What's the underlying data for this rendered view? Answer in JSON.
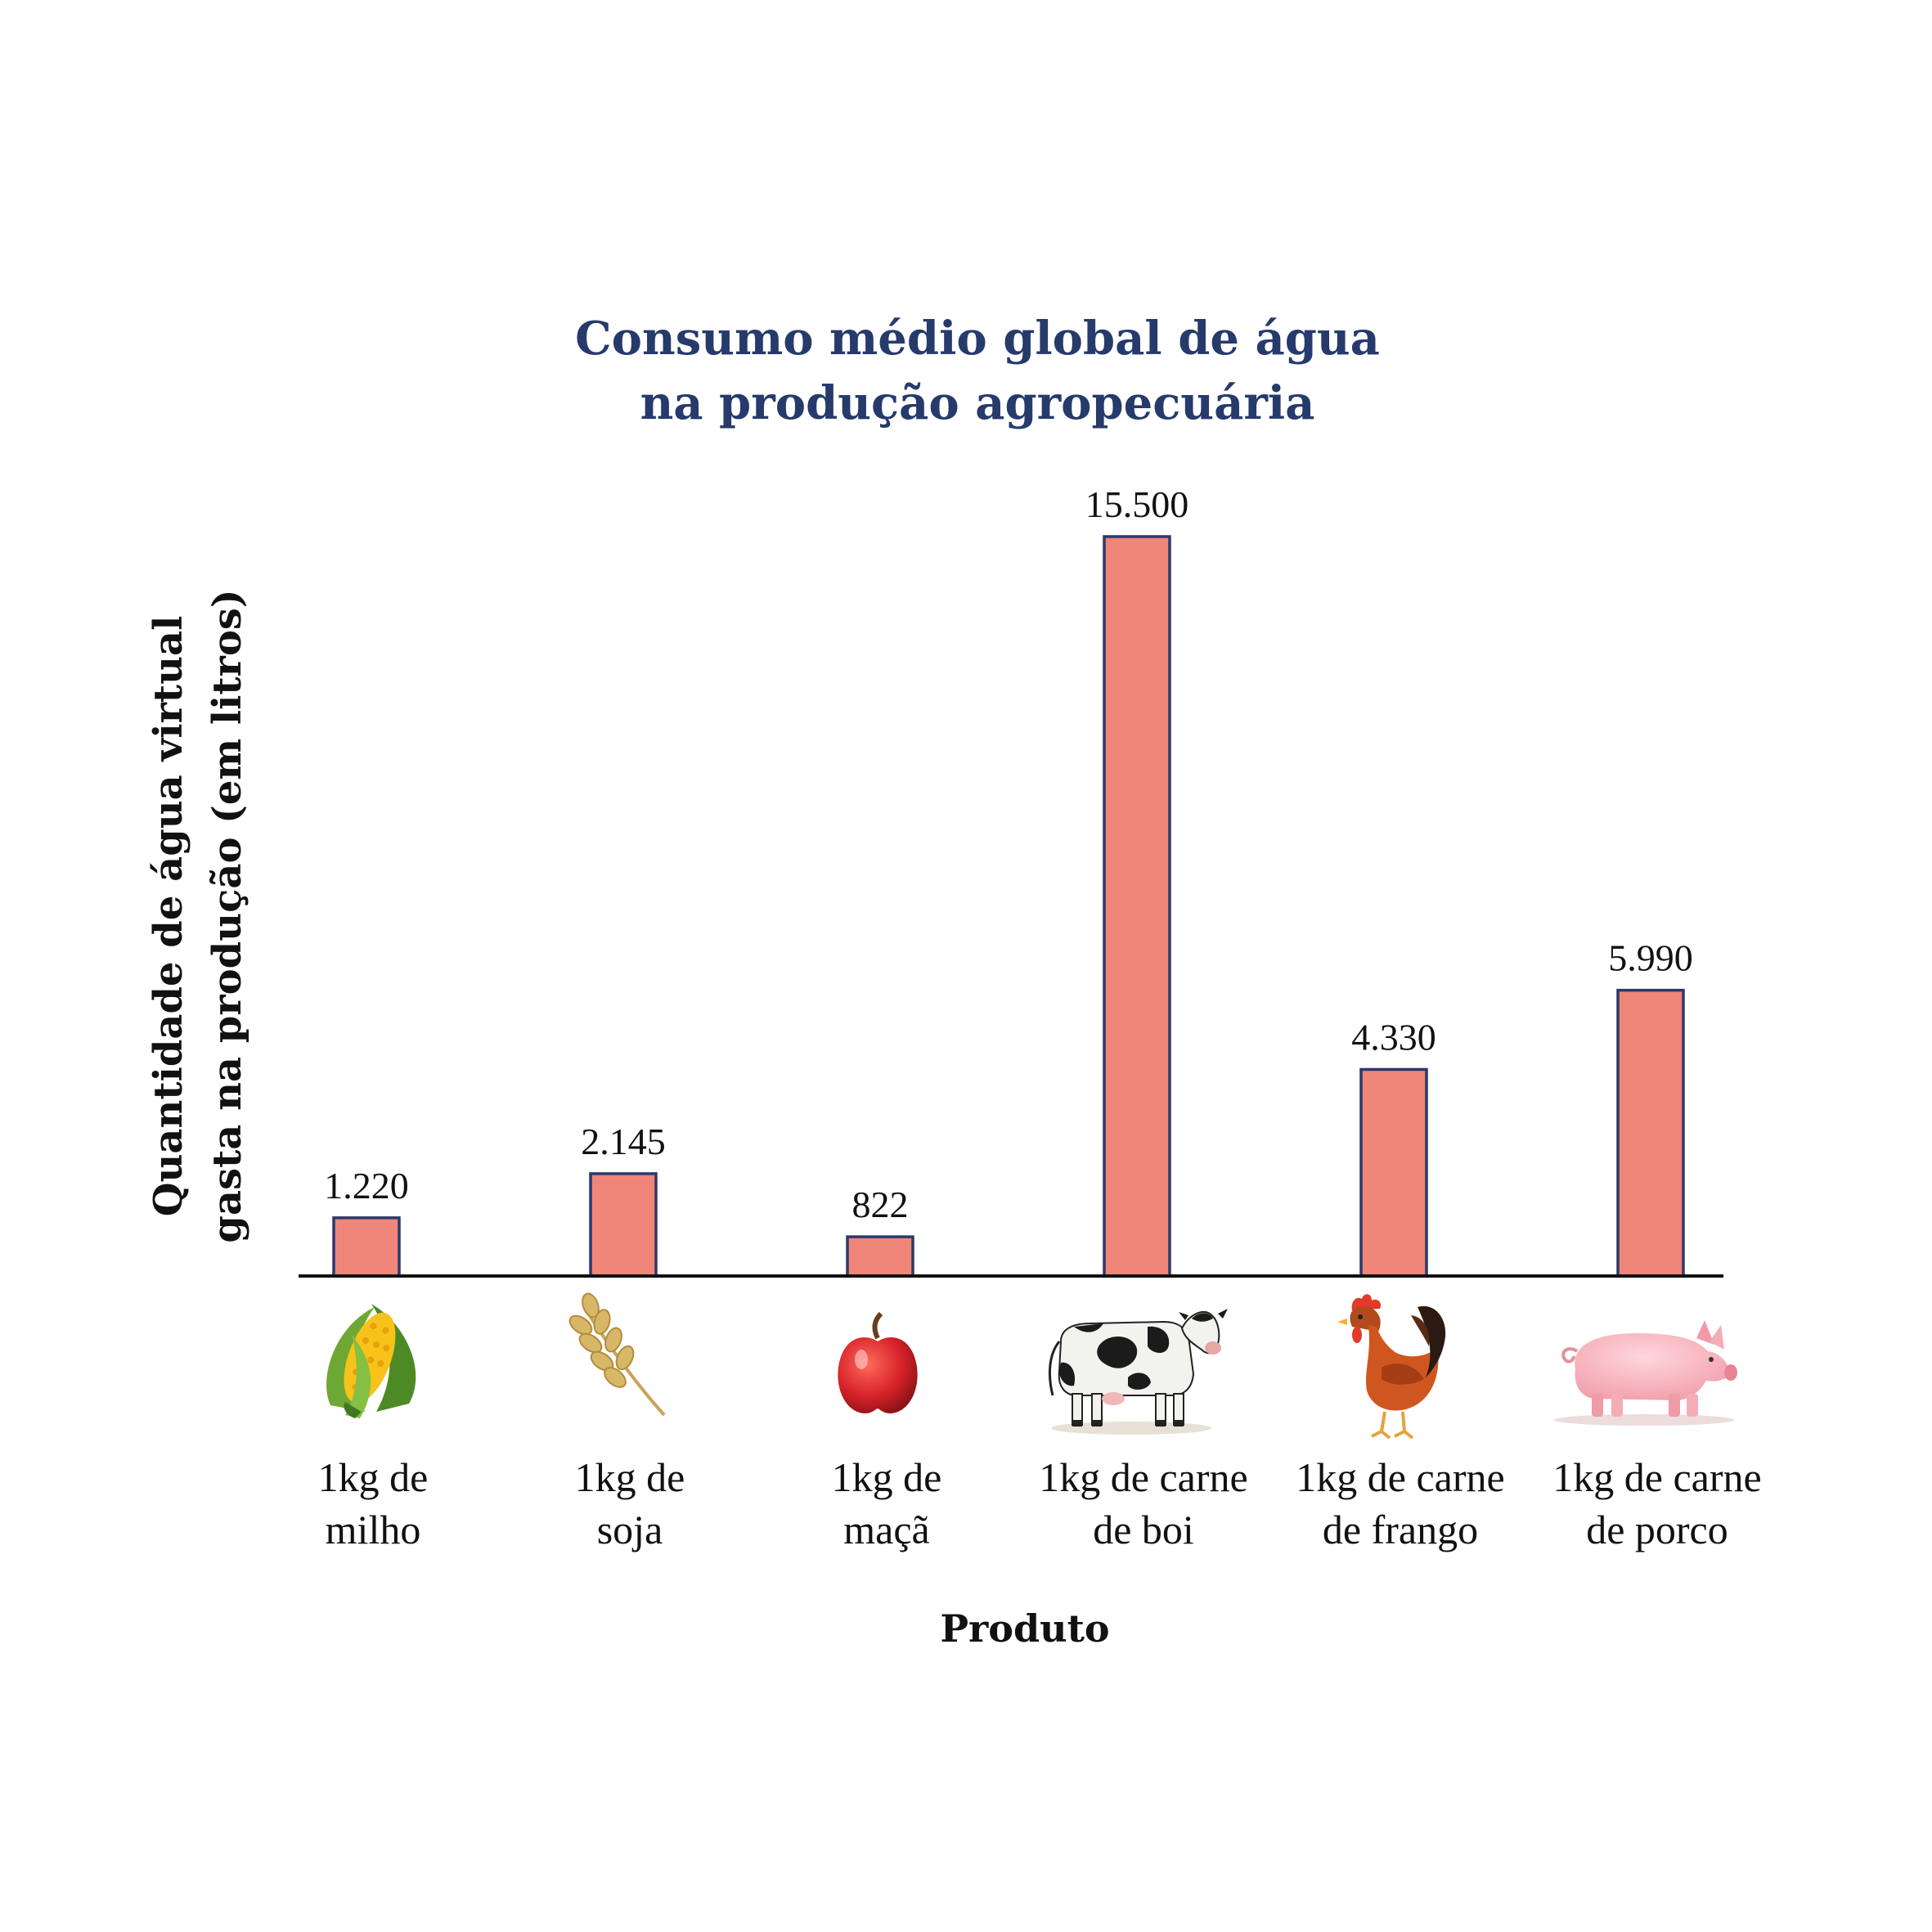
{
  "chart_data": {
    "type": "bar",
    "title_lines": [
      "Consumo médio global de água",
      "na produção agropecuária"
    ],
    "ylabel_lines": [
      "Quantidade de água virtual",
      "gasta na produção (em litros)"
    ],
    "xlabel": "Produto",
    "ylim": [
      0,
      15500
    ],
    "grid": false,
    "legend": "none",
    "bar_fill": "#f08579",
    "bar_stroke": "#2b3a6a",
    "categories": [
      {
        "lines": [
          "1kg de",
          "milho"
        ],
        "icon": "corn-icon"
      },
      {
        "lines": [
          "1kg de",
          "soja"
        ],
        "icon": "wheat-icon"
      },
      {
        "lines": [
          "1kg de",
          "maçã"
        ],
        "icon": "apple-icon"
      },
      {
        "lines": [
          "1kg de carne",
          "de boi"
        ],
        "icon": "cow-icon"
      },
      {
        "lines": [
          "1kg de carne",
          "de frango"
        ],
        "icon": "chicken-icon"
      },
      {
        "lines": [
          "1kg de carne",
          "de porco"
        ],
        "icon": "pig-icon"
      }
    ],
    "values": [
      1220,
      2145,
      822,
      15500,
      4330,
      5990
    ],
    "value_labels": [
      "1.220",
      "2.145",
      "822",
      "15.500",
      "4.330",
      "5.990"
    ]
  }
}
